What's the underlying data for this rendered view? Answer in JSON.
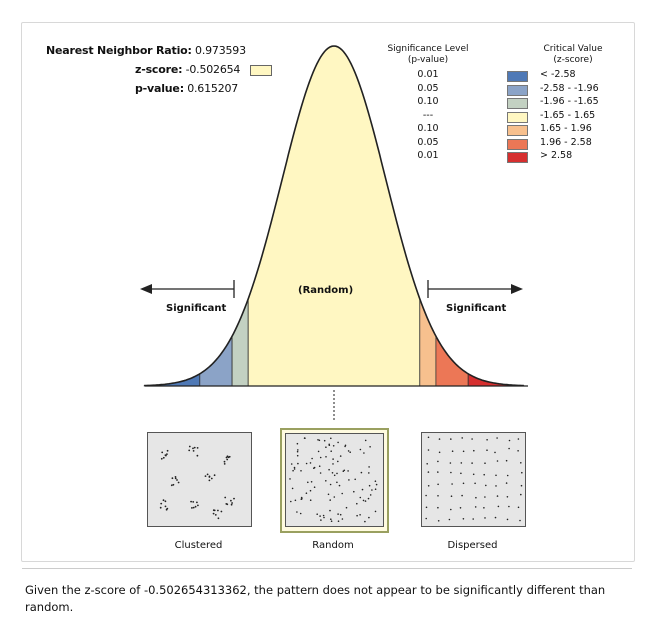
{
  "stats": {
    "nnr_label": "Nearest Neighbor Ratio:",
    "nnr_value": "0.973593",
    "z_label": "z-score:",
    "z_value": "-0.502654",
    "p_label": "p-value:",
    "p_value": "0.615207"
  },
  "legend": {
    "sig_header_1": "Significance Level",
    "sig_header_2": "(p-value)",
    "crit_header_1": "Critical Value",
    "crit_header_2": "(z-score)",
    "rows": [
      {
        "p": "0.01",
        "z": "< -2.58",
        "color": "#4f79b6"
      },
      {
        "p": "0.05",
        "z": "-2.58 - -1.96",
        "color": "#8ba3c7"
      },
      {
        "p": "0.10",
        "z": "-1.96 - -1.65",
        "color": "#c3d1c2"
      },
      {
        "p": "---",
        "z": "-1.65 - 1.65",
        "color": "#fff7c2"
      },
      {
        "p": "0.10",
        "z": "1.65 - 1.96",
        "color": "#f7c08e"
      },
      {
        "p": "0.05",
        "z": "1.96 - 2.58",
        "color": "#ec7756"
      },
      {
        "p": "0.01",
        "z": "> 2.58",
        "color": "#d62f2f"
      }
    ]
  },
  "curve": {
    "random_label": "(Random)",
    "significant_left": "Significant",
    "significant_right": "Significant"
  },
  "patterns": {
    "clustered": "Clustered",
    "random": "Random",
    "dispersed": "Dispersed"
  },
  "summary": "Given the z-score of -0.502654313362, the pattern does not appear to be significantly different than random."
}
